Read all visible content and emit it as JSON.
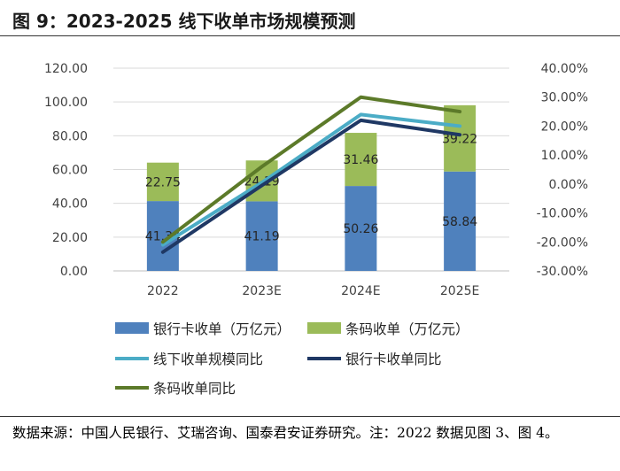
{
  "title": "图 9：2023-2025 线下收单市场规模预测",
  "source_note": "数据来源：中国人民银行、艾瑞咨询、国泰君安证券研究。注：2022 数据见图 3、图 4。",
  "chart_data": {
    "type": "bar+line",
    "categories": [
      "2022",
      "2023E",
      "2024E",
      "2025E"
    ],
    "bar_series": [
      {
        "name": "银行卡收单（万亿元）",
        "values": [
          41.34,
          41.19,
          50.26,
          58.84
        ],
        "labels": [
          "41.34",
          "41.19",
          "50.26",
          "58.84"
        ],
        "color": "#4f81bd"
      },
      {
        "name": "条码收单（万亿元）",
        "values": [
          22.75,
          24.19,
          31.46,
          39.22
        ],
        "labels": [
          "22.75",
          "24.19",
          "31.46",
          "39.22"
        ],
        "color": "#9bbb59"
      }
    ],
    "line_series": [
      {
        "name": "线下收单规模同比",
        "values": [
          -21.0,
          0.5,
          24.0,
          20.0
        ],
        "color": "#4bacc6"
      },
      {
        "name": "银行卡收单同比",
        "values": [
          -23.5,
          -0.5,
          22.0,
          17.0
        ],
        "color": "#1f3864"
      },
      {
        "name": "条码收单同比",
        "values": [
          -20.0,
          6.0,
          30.0,
          25.0
        ],
        "color": "#5c7a29"
      }
    ],
    "y_left": {
      "min": 0,
      "max": 120,
      "ticks": [
        "0.00",
        "20.00",
        "40.00",
        "60.00",
        "80.00",
        "100.00",
        "120.00"
      ]
    },
    "y_right": {
      "min": -30,
      "max": 40,
      "ticks": [
        "-30.00%",
        "-20.00%",
        "-10.00%",
        "0.00%",
        "10.00%",
        "20.00%",
        "30.00%",
        "40.00%"
      ]
    },
    "legend": [
      {
        "name": "银行卡收单（万亿元）",
        "kind": "bar",
        "color": "#4f81bd"
      },
      {
        "name": "条码收单（万亿元）",
        "kind": "bar",
        "color": "#9bbb59"
      },
      {
        "name": "线下收单规模同比",
        "kind": "line",
        "color": "#4bacc6"
      },
      {
        "name": "银行卡收单同比",
        "kind": "line",
        "color": "#1f3864"
      },
      {
        "name": "条码收单同比",
        "kind": "line",
        "color": "#5c7a29"
      }
    ],
    "legend_position": "bottom"
  }
}
